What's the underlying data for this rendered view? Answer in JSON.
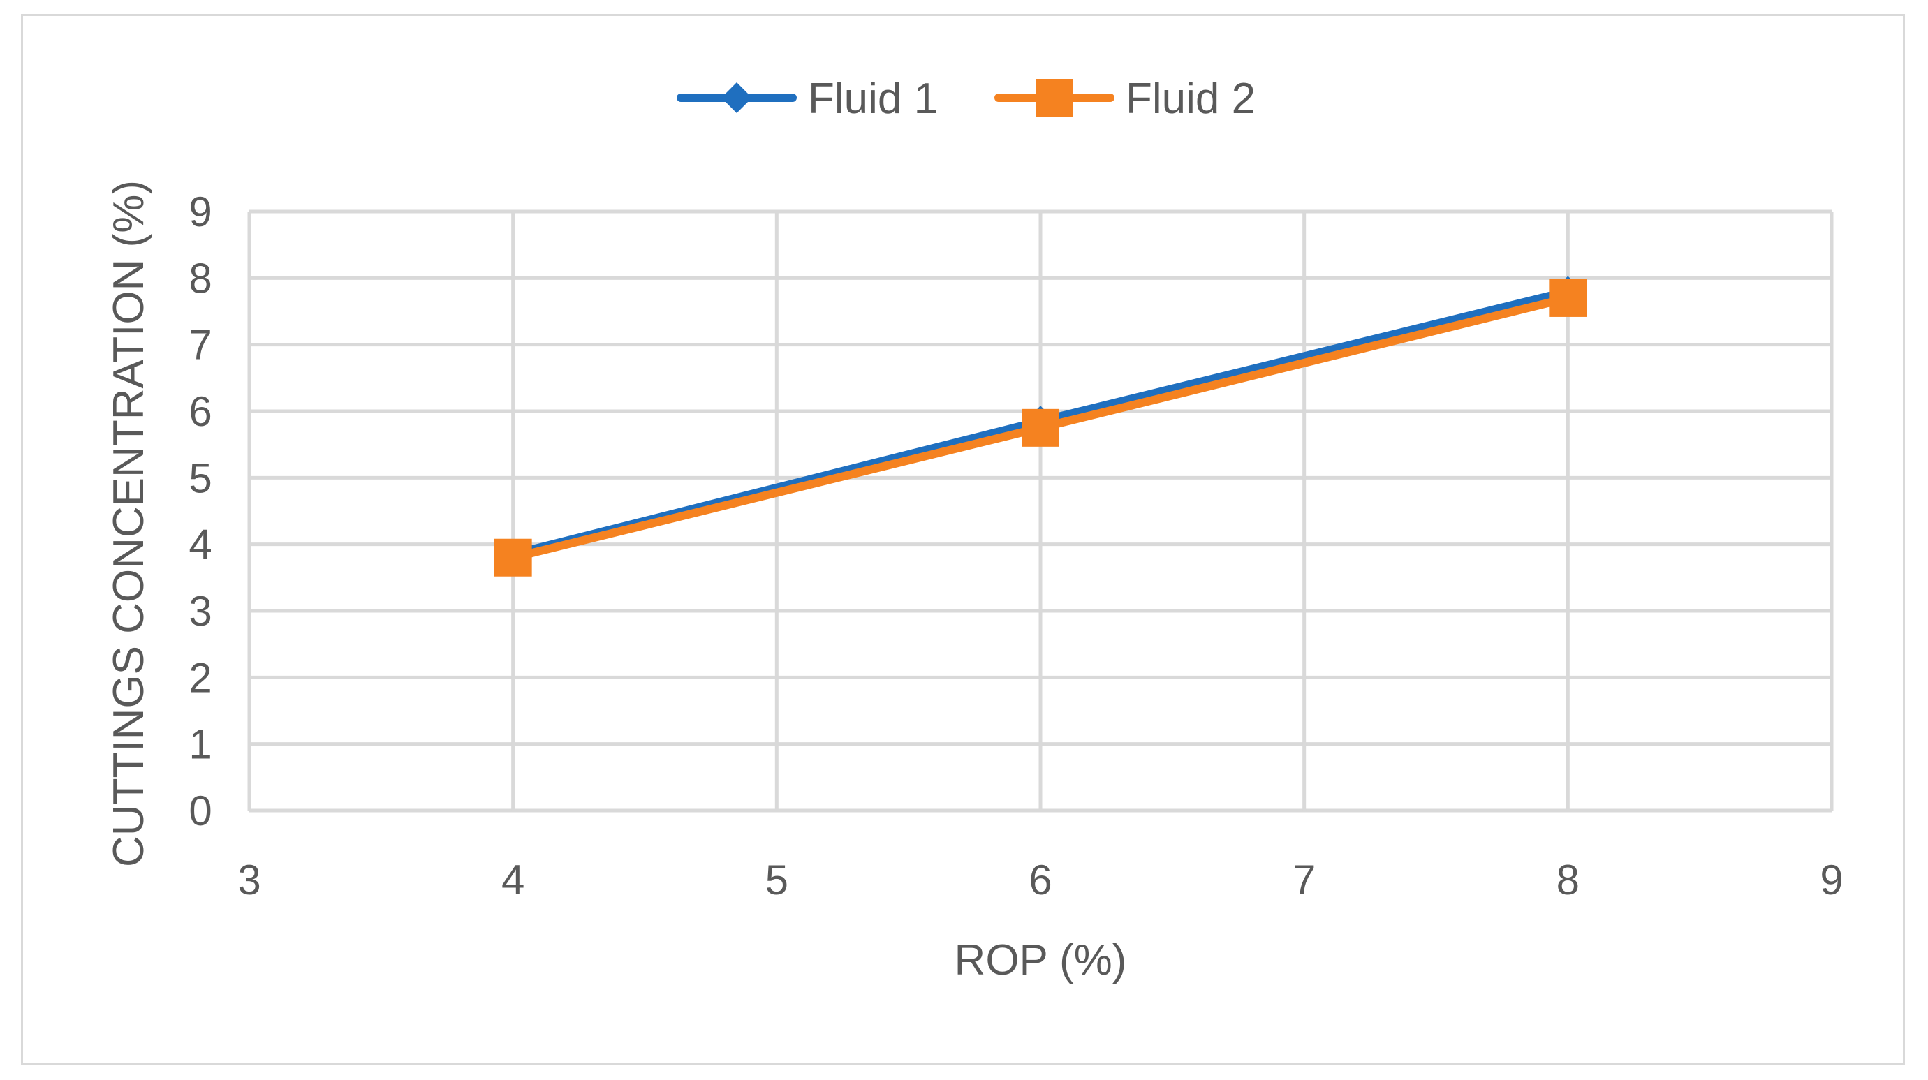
{
  "chart_data": {
    "type": "line",
    "title": "",
    "xlabel": "ROP (%)",
    "ylabel": "CUTTINGS CONCENTRATION (%)",
    "xlim": [
      3,
      9
    ],
    "ylim": [
      0,
      9
    ],
    "xticks": [
      3,
      4,
      5,
      6,
      7,
      8,
      9
    ],
    "yticks": [
      0,
      1,
      2,
      3,
      4,
      5,
      6,
      7,
      8,
      9
    ],
    "grid": true,
    "legend_position": "top",
    "series": [
      {
        "name": "Fluid 1",
        "color": "#1f6fbf",
        "marker": "diamond",
        "x": [
          4,
          6,
          8
        ],
        "y": [
          3.85,
          5.85,
          7.8
        ]
      },
      {
        "name": "Fluid 2",
        "color": "#f58220",
        "marker": "square",
        "x": [
          4,
          6,
          8
        ],
        "y": [
          3.8,
          5.75,
          7.7
        ]
      }
    ]
  }
}
